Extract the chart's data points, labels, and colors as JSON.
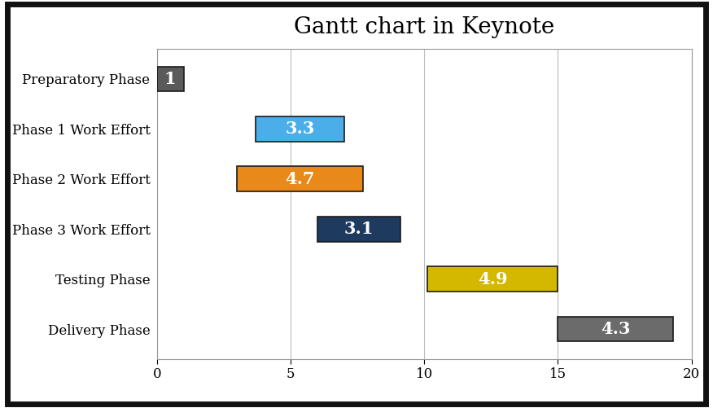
{
  "title": "Gantt chart in Keynote",
  "title_fontsize": 20,
  "title_font": "serif",
  "tasks": [
    "Preparatory Phase",
    "Phase 1 Work Effort",
    "Phase 2 Work Effort",
    "Phase 3 Work Effort",
    "Testing Phase",
    "Delivery Phase"
  ],
  "starts": [
    0.0,
    3.7,
    3.0,
    6.0,
    10.1,
    15.0
  ],
  "durations": [
    1.0,
    3.3,
    4.7,
    3.1,
    4.9,
    4.3
  ],
  "labels": [
    "1",
    "3.3",
    "4.7",
    "3.1",
    "4.9",
    "4.3"
  ],
  "colors": [
    "#5A5A5A",
    "#4BAEE8",
    "#E8891A",
    "#1E3A5F",
    "#D4B800",
    "#6B6B6B"
  ],
  "label_colors": [
    "white",
    "white",
    "white",
    "white",
    "white",
    "white"
  ],
  "bar_height": 0.5,
  "xlim": [
    0,
    20
  ],
  "xticks": [
    0,
    5,
    10,
    15,
    20
  ],
  "bar_edgecolor": "#1a1a1a",
  "bar_linewidth": 1.2,
  "label_fontsize": 15,
  "label_font": "serif",
  "ytick_fontsize": 12,
  "ytick_font": "serif",
  "xtick_fontsize": 12,
  "xtick_font": "serif",
  "background_color": "#FFFFFF",
  "outer_border_color": "#111111",
  "outer_border_linewidth": 5,
  "plot_bg_color": "#FFFFFF",
  "grid_color": "#BBBBBB",
  "grid_linewidth": 0.8,
  "grid_linestyle": "-",
  "plot_border_color": "#999999",
  "plot_border_linewidth": 0.8
}
